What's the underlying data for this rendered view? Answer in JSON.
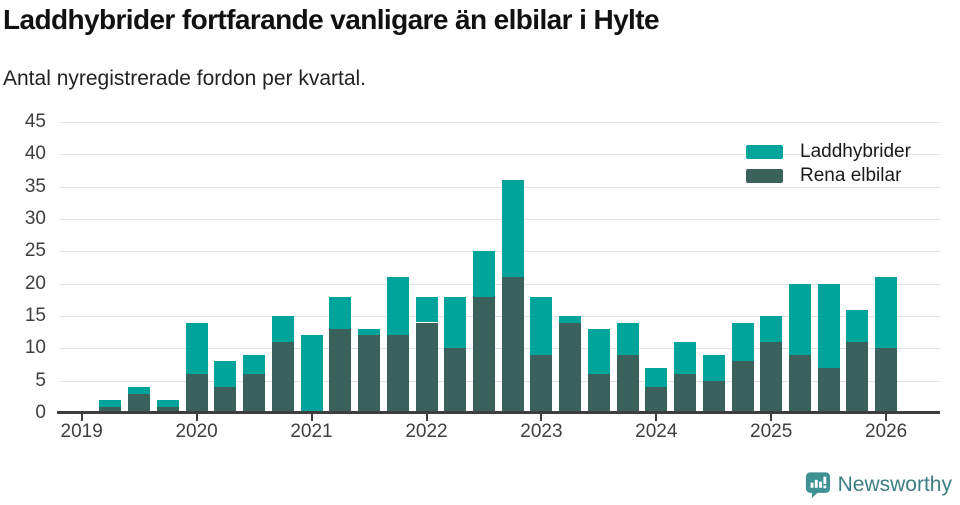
{
  "header": {
    "title": "Laddhybrider fortfarande vanligare än elbilar i Hylte",
    "subtitle": "Antal nyregistrerade fordon per kvartal."
  },
  "chart_data": {
    "type": "bar",
    "stacked": true,
    "title": "Laddhybrider fortfarande vanligare än elbilar i Hylte",
    "subtitle": "Antal nyregistrerade fordon per kvartal.",
    "xlabel": "",
    "ylabel": "",
    "ylim": [
      0,
      45
    ],
    "y_ticks": [
      0,
      5,
      10,
      15,
      20,
      25,
      30,
      35,
      40,
      45
    ],
    "grid": "horizontal",
    "legend_position": "top-right",
    "categories": [
      "2019 Q1",
      "2019 Q2",
      "2019 Q3",
      "2019 Q4",
      "2020 Q1",
      "2020 Q2",
      "2020 Q3",
      "2020 Q4",
      "2021 Q1",
      "2021 Q2",
      "2021 Q3",
      "2021 Q4",
      "2022 Q1",
      "2022 Q2",
      "2022 Q3",
      "2022 Q4",
      "2023 Q1",
      "2023 Q2",
      "2023 Q3",
      "2023 Q4",
      "2024 Q1",
      "2024 Q2",
      "2024 Q3",
      "2024 Q4",
      "2025 Q1",
      "2025 Q2",
      "2025 Q3",
      "2025 Q4",
      "2026 Q1"
    ],
    "x_tick_labels": [
      "2019",
      "2020",
      "2021",
      "2022",
      "2023",
      "2024",
      "2025",
      "2026"
    ],
    "x_tick_indices": [
      0,
      4,
      8,
      12,
      16,
      20,
      24,
      28
    ],
    "series": [
      {
        "name": "Laddhybrider",
        "color": "#00a49b",
        "values": [
          0,
          1,
          1,
          1,
          8,
          4,
          3,
          4,
          12,
          5,
          1,
          9,
          4,
          8,
          7,
          15,
          9,
          1,
          7,
          5,
          3,
          5,
          4,
          6,
          4,
          11,
          13,
          5,
          11
        ]
      },
      {
        "name": "Rena elbilar",
        "color": "#3a615c",
        "values": [
          0,
          1,
          3,
          1,
          6,
          4,
          6,
          11,
          0,
          13,
          12,
          12,
          14,
          10,
          18,
          21,
          9,
          14,
          6,
          9,
          4,
          6,
          5,
          8,
          11,
          9,
          7,
          11,
          10
        ]
      }
    ],
    "stack_bottom_to_top": [
      "Rena elbilar",
      "Laddhybrider"
    ],
    "totals": [
      0,
      2,
      4,
      2,
      14,
      8,
      9,
      15,
      12,
      18,
      13,
      21,
      18,
      18,
      25,
      36,
      18,
      15,
      13,
      14,
      7,
      11,
      9,
      14,
      15,
      20,
      20,
      16,
      21
    ]
  },
  "legend": {
    "items": [
      {
        "label": "Laddhybrider",
        "color": "#00a49b"
      },
      {
        "label": "Rena elbilar",
        "color": "#3a615c"
      }
    ]
  },
  "footer": {
    "brand": "Newsworthy",
    "logo_icon": "bar-chart-speech-bubble-icon",
    "icon_color": "#3f9194",
    "brand_color": "#3c7d84"
  }
}
